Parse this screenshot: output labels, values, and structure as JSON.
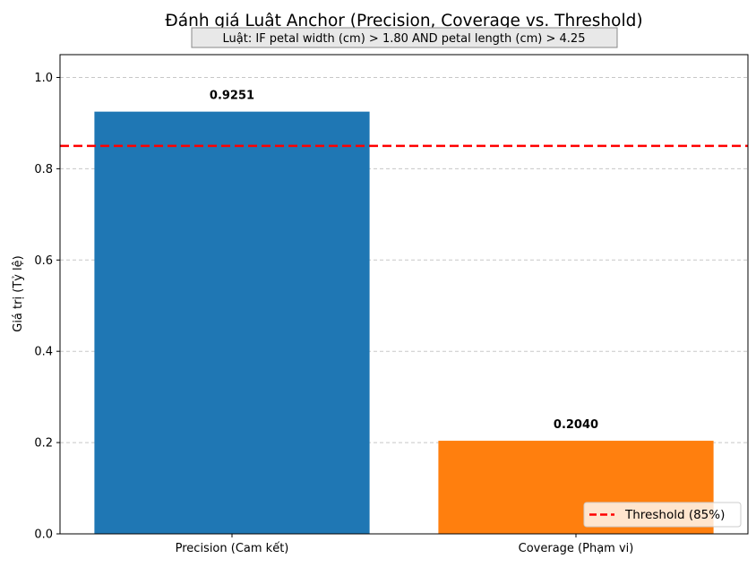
{
  "chart_data": {
    "type": "bar",
    "title": "Đánh giá Luật Anchor (Precision, Coverage vs. Threshold)",
    "subtitle": "Luật: IF petal width (cm) > 1.80 AND petal length (cm) > 4.25",
    "xlabel": "",
    "ylabel": "Giá trị (Tỷ lệ)",
    "categories": [
      "Precision (Cam kết)",
      "Coverage (Phạm vi)"
    ],
    "values": [
      0.9251,
      0.204
    ],
    "data_labels": [
      "0.9251",
      "0.2040"
    ],
    "colors": [
      "#1f77b4",
      "#ff7f0e"
    ],
    "ylim": [
      0,
      1.05
    ],
    "yticks": [
      "0.0",
      "0.2",
      "0.4",
      "0.6",
      "0.8",
      "1.0"
    ],
    "grid": "y, dashed",
    "threshold": {
      "value": 0.85,
      "label": "Threshold (85%)",
      "color": "#ff0000",
      "style": "dashed"
    },
    "legend": "bottom-right"
  }
}
